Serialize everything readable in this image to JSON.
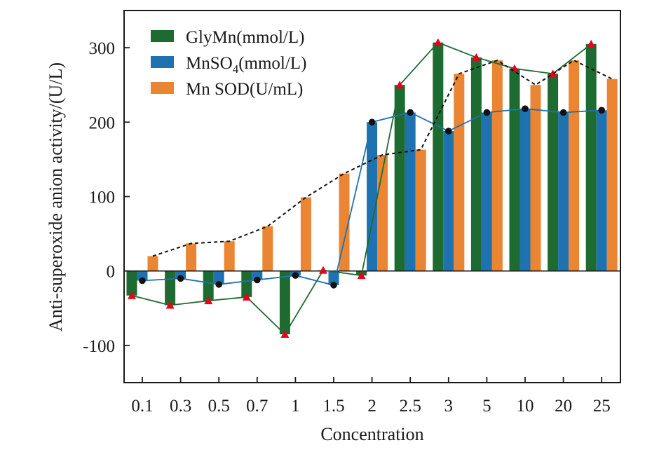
{
  "chart_data": {
    "type": "bar",
    "xlabel": "Concentration",
    "ylabel": "Anti-superoxide anion activity/(U/L)",
    "categories": [
      "0.1",
      "0.3",
      "0.5",
      "0.7",
      "1",
      "1.5",
      "2",
      "2.5",
      "3",
      "5",
      "10",
      "20",
      "25"
    ],
    "ylim": [
      -150,
      350
    ],
    "yticks": [
      -100,
      0,
      100,
      200,
      300
    ],
    "grid": false,
    "legend_position": "top-left",
    "series": [
      {
        "name": "GlyMn(mmol/L)",
        "name_base": "GlyMn(mmol/L)",
        "color": "#1e6b32",
        "marker": "triangle",
        "marker_color": "#e8001c",
        "line": "solid",
        "values": [
          -33,
          -46,
          -40,
          -35,
          -85,
          1,
          -6,
          250,
          307,
          287,
          272,
          265,
          305
        ]
      },
      {
        "name": "MnSO4(mmol/L)",
        "name_base": "MnSO",
        "name_sub": "4",
        "name_tail": "(mmol/L)",
        "color": "#1e72b0",
        "marker": "circle",
        "marker_color": "#111111",
        "line": "solid",
        "values": [
          -13,
          -10,
          -18,
          -12,
          -6,
          -19,
          200,
          213,
          188,
          213,
          218,
          213,
          216
        ]
      },
      {
        "name": "Mn SOD(U/mL)",
        "name_base": "Mn SOD(U/mL)",
        "color": "#ea8533",
        "marker": "none",
        "line": "dashed",
        "line_color": "#111111",
        "values": [
          20,
          37,
          40,
          60,
          99,
          131,
          156,
          163,
          265,
          283,
          250,
          283,
          258
        ]
      }
    ]
  }
}
